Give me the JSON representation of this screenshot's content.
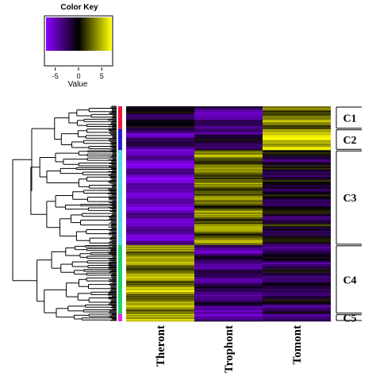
{
  "chart_data": {
    "type": "heatmap",
    "columns": [
      "Theront",
      "Trophont",
      "Tomont"
    ],
    "clusters": [
      {
        "label": "C1",
        "color": "#e8193a",
        "rows": 28,
        "values": [
          -1,
          -4,
          3
        ]
      },
      {
        "label": "C2",
        "color": "#2a1fcf",
        "rows": 26,
        "values": [
          -3,
          -2,
          6
        ]
      },
      {
        "label": "C3",
        "color": "#5fd3e8",
        "rows": 117,
        "values": [
          -5,
          3,
          -1
        ]
      },
      {
        "label": "C4",
        "color": "#22d16b",
        "rows": 85,
        "values": [
          4,
          -3,
          -2
        ]
      },
      {
        "label": "C5",
        "color": "#e22be0",
        "rows": 9,
        "values": [
          6,
          -4,
          -4
        ]
      }
    ],
    "color_key": {
      "title": "Color Key",
      "label": "Value",
      "ticks": [
        "-5",
        "0",
        "5"
      ],
      "range": [
        -7,
        7
      ],
      "colors": {
        "low": "#8a00ff",
        "mid": "#000000",
        "high": "#ffff00"
      }
    }
  }
}
